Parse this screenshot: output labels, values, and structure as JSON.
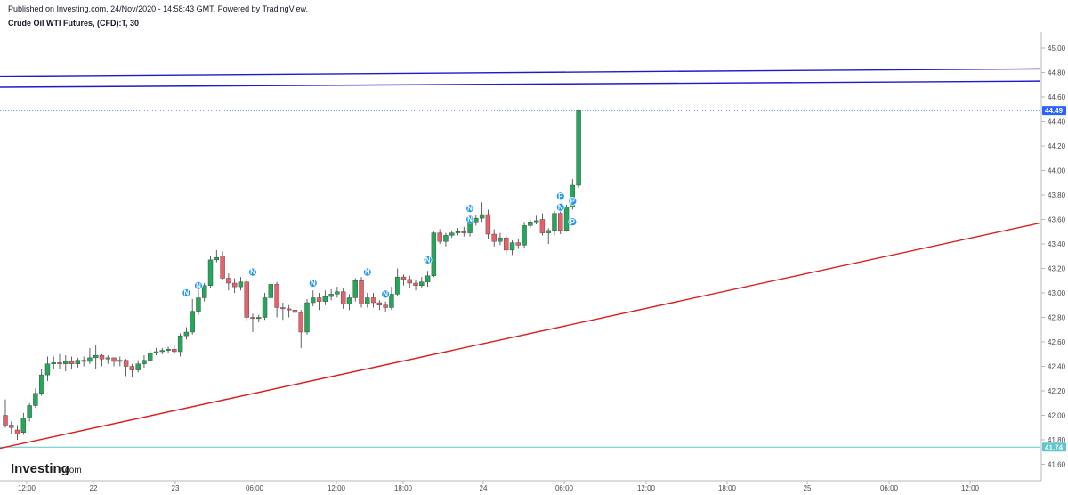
{
  "header": {
    "published": "Published on Investing.com, 24/Nov/2020 - 14:58:43 GMT, Powered by TradingView.",
    "title": "Crude Oil WTI Futures, (CFD):T, 30"
  },
  "branding": {
    "name": "Investing",
    "suffix": ".com"
  },
  "colors": {
    "up": "#26a65b",
    "down": "#e8606a",
    "resistance": "#1c1ccc",
    "support": "#dd1c1c",
    "price_line": "#2962ff",
    "level_line": "#5fc7c9",
    "event_marker": "#2196f3"
  },
  "chart_data": {
    "type": "candlestick",
    "timeframe": "30",
    "ylim": [
      41.5,
      45.2
    ],
    "y_ticks": [
      "45.00",
      "44.80",
      "44.60",
      "44.40",
      "44.20",
      "44.00",
      "43.80",
      "43.60",
      "43.40",
      "43.20",
      "43.00",
      "42.80",
      "42.60",
      "42.40",
      "42.20",
      "42.00",
      "41.80",
      "41.60"
    ],
    "x_ticks": [
      "12:00",
      "22",
      "23",
      "06:00",
      "12:00",
      "18:00",
      "24",
      "06:00",
      "12:00",
      "18:00",
      "25",
      "06:00",
      "12:00"
    ],
    "current_price": "44.49",
    "level_price": "41.74",
    "candles": [
      [
        42.0,
        41.92,
        42.13,
        41.9
      ],
      [
        41.92,
        41.9,
        41.95,
        41.85
      ],
      [
        41.88,
        41.85,
        41.92,
        41.8
      ],
      [
        41.86,
        41.98,
        42.02,
        41.84
      ],
      [
        41.98,
        42.08,
        42.1,
        41.95
      ],
      [
        42.08,
        42.18,
        42.22,
        42.06
      ],
      [
        42.18,
        42.33,
        42.38,
        42.16
      ],
      [
        42.33,
        42.42,
        42.48,
        42.28
      ],
      [
        42.42,
        42.43,
        42.48,
        42.38
      ],
      [
        42.43,
        42.42,
        42.5,
        42.38
      ],
      [
        42.42,
        42.44,
        42.49,
        42.36
      ],
      [
        42.44,
        42.42,
        42.48,
        42.38
      ],
      [
        42.42,
        42.45,
        42.47,
        42.39
      ],
      [
        42.45,
        42.44,
        42.48,
        42.4
      ],
      [
        42.44,
        42.47,
        42.55,
        42.42
      ],
      [
        42.47,
        42.49,
        42.57,
        42.38
      ],
      [
        42.49,
        42.46,
        42.5,
        42.4
      ],
      [
        42.46,
        42.47,
        42.49,
        42.42
      ],
      [
        42.47,
        42.44,
        42.47,
        42.4
      ],
      [
        42.44,
        42.45,
        42.48,
        42.4
      ],
      [
        42.45,
        42.4,
        42.46,
        42.32
      ],
      [
        42.4,
        42.37,
        42.42,
        42.31
      ],
      [
        42.37,
        42.42,
        42.45,
        42.35
      ],
      [
        42.42,
        42.45,
        42.49,
        42.39
      ],
      [
        42.45,
        42.51,
        42.54,
        42.43
      ],
      [
        42.51,
        42.52,
        42.55,
        42.49
      ],
      [
        42.52,
        42.53,
        42.55,
        42.5
      ],
      [
        42.53,
        42.54,
        42.56,
        42.51
      ],
      [
        42.54,
        42.52,
        42.57,
        42.5
      ],
      [
        42.52,
        42.65,
        42.67,
        42.48
      ],
      [
        42.65,
        42.68,
        42.72,
        42.62
      ],
      [
        42.68,
        42.85,
        42.95,
        42.66
      ],
      [
        42.85,
        42.96,
        43.05,
        42.82
      ],
      [
        42.96,
        43.06,
        43.08,
        42.93
      ],
      [
        43.06,
        43.27,
        43.3,
        43.04
      ],
      [
        43.27,
        43.29,
        43.35,
        43.25
      ],
      [
        43.3,
        43.12,
        43.34,
        43.1
      ],
      [
        43.12,
        43.08,
        43.16,
        43.02
      ],
      [
        43.08,
        43.05,
        43.12,
        43.0
      ],
      [
        43.05,
        43.09,
        43.13,
        43.02
      ],
      [
        43.09,
        42.8,
        43.12,
        42.77
      ],
      [
        42.8,
        42.79,
        42.83,
        42.68
      ],
      [
        42.79,
        42.8,
        42.82,
        42.76
      ],
      [
        42.8,
        42.96,
        43.0,
        42.78
      ],
      [
        42.96,
        43.07,
        43.09,
        42.94
      ],
      [
        43.07,
        42.88,
        43.09,
        42.8
      ],
      [
        42.88,
        42.87,
        42.92,
        42.78
      ],
      [
        42.87,
        42.86,
        42.9,
        42.8
      ],
      [
        42.86,
        42.84,
        42.88,
        42.8
      ],
      [
        42.84,
        42.68,
        42.86,
        42.55
      ],
      [
        42.68,
        42.92,
        42.95,
        42.66
      ],
      [
        42.92,
        42.96,
        43.02,
        42.89
      ],
      [
        42.96,
        42.93,
        43.0,
        42.86
      ],
      [
        42.93,
        42.97,
        43.02,
        42.9
      ],
      [
        42.97,
        42.99,
        43.03,
        42.94
      ],
      [
        42.99,
        43.01,
        43.05,
        42.96
      ],
      [
        43.01,
        42.91,
        43.04,
        42.87
      ],
      [
        42.91,
        42.96,
        42.99,
        42.86
      ],
      [
        42.96,
        43.1,
        43.12,
        42.93
      ],
      [
        43.1,
        42.91,
        43.13,
        42.88
      ],
      [
        42.91,
        42.96,
        43.0,
        42.88
      ],
      [
        42.96,
        42.92,
        43.0,
        42.88
      ],
      [
        42.92,
        42.9,
        42.94,
        42.86
      ],
      [
        42.9,
        42.88,
        42.93,
        42.84
      ],
      [
        42.88,
        42.99,
        43.05,
        42.86
      ],
      [
        42.99,
        43.13,
        43.2,
        42.97
      ],
      [
        43.13,
        43.11,
        43.15,
        43.06
      ],
      [
        43.11,
        43.08,
        43.14,
        43.04
      ],
      [
        43.08,
        43.06,
        43.11,
        43.02
      ],
      [
        43.06,
        43.09,
        43.13,
        43.04
      ],
      [
        43.09,
        43.14,
        43.18,
        43.05
      ],
      [
        43.14,
        43.49,
        43.5,
        43.13
      ],
      [
        43.49,
        43.42,
        43.52,
        43.4
      ],
      [
        43.42,
        43.47,
        43.49,
        43.38
      ],
      [
        43.47,
        43.49,
        43.51,
        43.45
      ],
      [
        43.49,
        43.5,
        43.53,
        43.47
      ],
      [
        43.5,
        43.49,
        43.54,
        43.46
      ],
      [
        43.49,
        43.58,
        43.61,
        43.46
      ],
      [
        43.58,
        43.61,
        43.64,
        43.55
      ],
      [
        43.61,
        43.64,
        43.74,
        43.58
      ],
      [
        43.64,
        43.48,
        43.68,
        43.44
      ],
      [
        43.48,
        43.42,
        43.52,
        43.38
      ],
      [
        43.42,
        43.45,
        43.49,
        43.39
      ],
      [
        43.45,
        43.35,
        43.47,
        43.31
      ],
      [
        43.35,
        43.41,
        43.43,
        43.31
      ],
      [
        43.41,
        43.39,
        43.44,
        43.36
      ],
      [
        43.39,
        43.55,
        43.58,
        43.37
      ],
      [
        43.55,
        43.58,
        43.6,
        43.53
      ],
      [
        43.58,
        43.59,
        43.63,
        43.56
      ],
      [
        43.6,
        43.49,
        43.65,
        43.47
      ],
      [
        43.49,
        43.51,
        43.53,
        43.4
      ],
      [
        43.51,
        43.65,
        43.67,
        43.47
      ],
      [
        43.65,
        43.51,
        43.69,
        43.48
      ],
      [
        43.51,
        43.7,
        43.72,
        43.5
      ],
      [
        43.7,
        43.88,
        43.93,
        43.68
      ],
      [
        43.88,
        44.49,
        44.5,
        43.86
      ]
    ],
    "resistance_lines": [
      {
        "x": [
          0,
          1168
        ],
        "y": [
          44.77,
          44.83
        ]
      },
      {
        "x": [
          0,
          1168
        ],
        "y": [
          44.68,
          44.73
        ]
      }
    ],
    "support_line": {
      "x": [
        0,
        1168
      ],
      "y": [
        41.73,
        43.57
      ]
    },
    "event_markers": [
      {
        "label": "N",
        "index": 30,
        "price": 43.0
      },
      {
        "label": "N",
        "index": 32,
        "price": 43.06
      },
      {
        "label": "N",
        "index": 41,
        "price": 43.17
      },
      {
        "label": "N",
        "index": 51,
        "price": 43.08
      },
      {
        "label": "N",
        "index": 60,
        "price": 43.17
      },
      {
        "label": "N",
        "index": 63,
        "price": 42.99
      },
      {
        "label": "N",
        "index": 70,
        "price": 43.27
      },
      {
        "label": "N",
        "index": 77,
        "price": 43.69
      },
      {
        "label": "N",
        "index": 77,
        "price": 43.6
      },
      {
        "label": "P",
        "index": 92,
        "price": 43.79
      },
      {
        "label": "N",
        "index": 92,
        "price": 43.7
      },
      {
        "label": "P",
        "index": 94,
        "price": 43.75
      },
      {
        "label": "P",
        "index": 94,
        "price": 43.58
      }
    ]
  }
}
